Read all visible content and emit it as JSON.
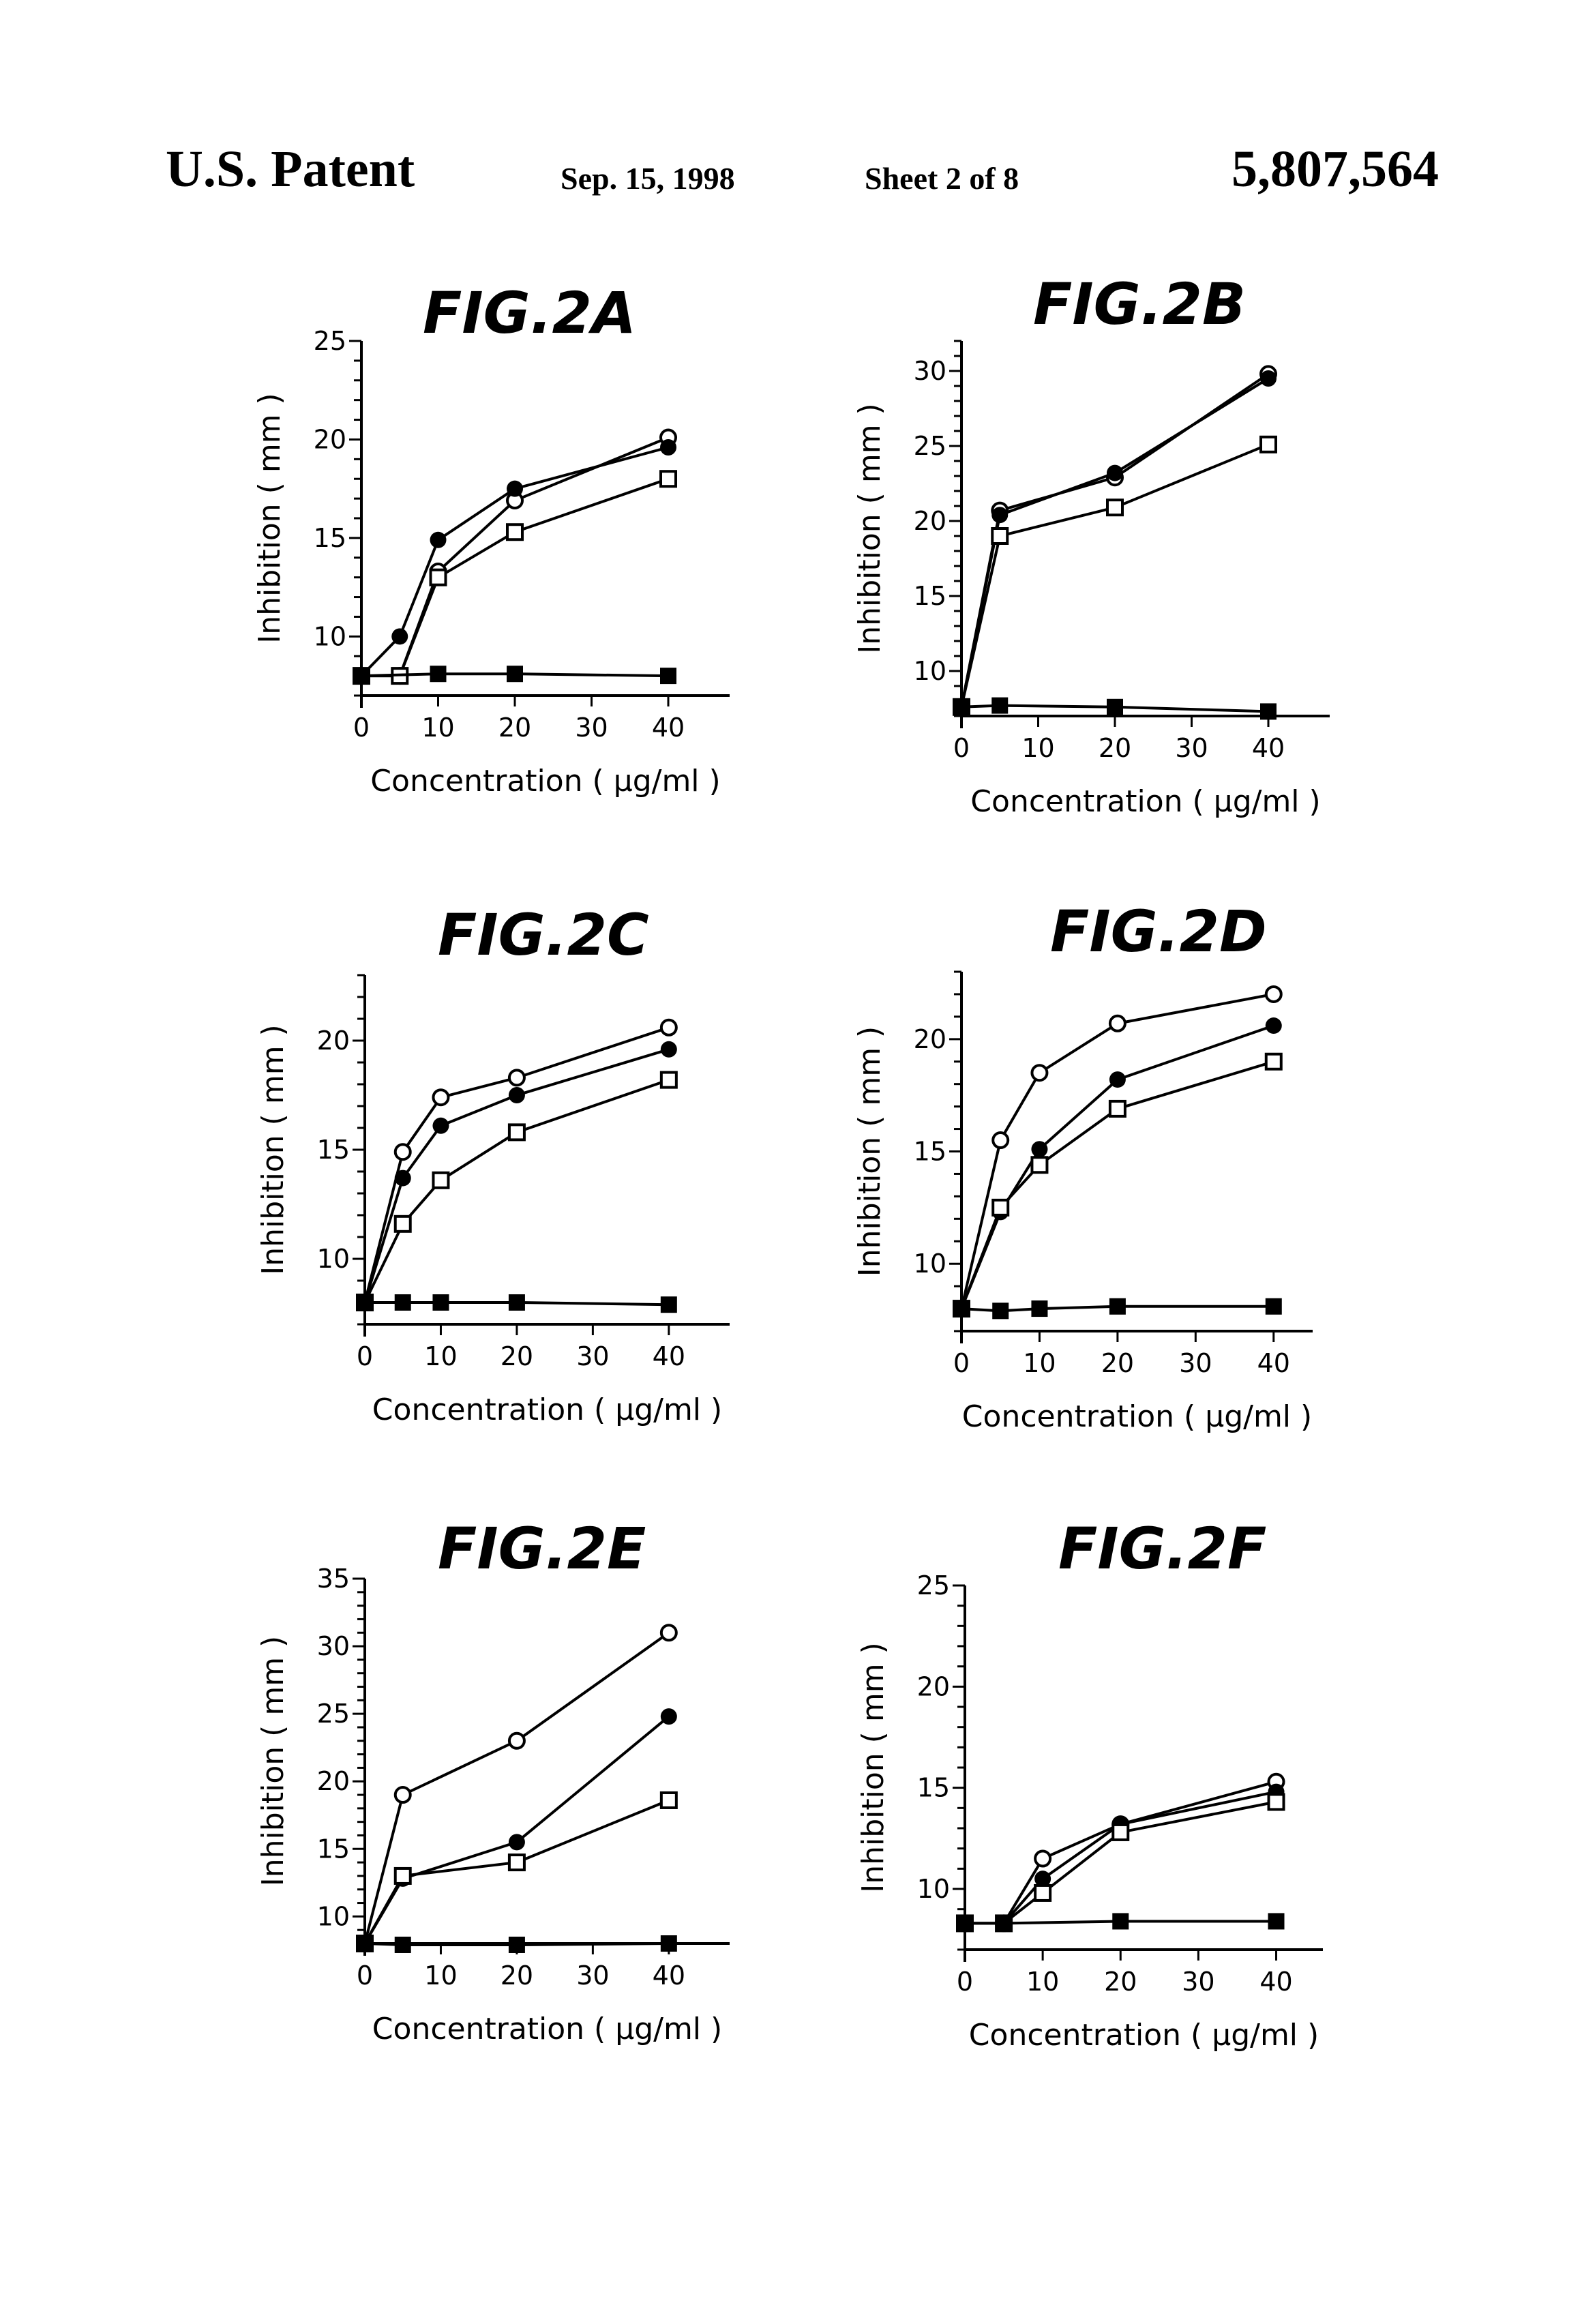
{
  "header": {
    "patent": "U.S. Patent",
    "date": "Sep. 15, 1998",
    "sheet": "Sheet 2 of 8",
    "number": "5,807,564"
  },
  "chart_data": [
    {
      "type": "line",
      "title": "FIG.2A",
      "xlabel": "Concentration ( μg/ml )",
      "ylabel": "Inhibition ( mm )",
      "xlim": [
        0,
        48
      ],
      "ylim": [
        7,
        25
      ],
      "xticks": [
        0,
        10,
        20,
        30,
        40
      ],
      "yticks": [
        10,
        15,
        20,
        25
      ],
      "ytick_labels": [
        "10",
        "15",
        "20",
        "25"
      ],
      "series": [
        {
          "marker": "open-circle",
          "x": [
            0,
            5,
            10,
            20,
            40
          ],
          "y": [
            8,
            8,
            13.3,
            16.9,
            20.1
          ]
        },
        {
          "marker": "filled-circle",
          "x": [
            0,
            5,
            10,
            20,
            40
          ],
          "y": [
            8,
            10,
            14.9,
            17.5,
            19.6
          ]
        },
        {
          "marker": "open-square",
          "x": [
            0,
            5,
            10,
            20,
            40
          ],
          "y": [
            8,
            8,
            13.0,
            15.3,
            18.0
          ]
        },
        {
          "marker": "filled-square",
          "x": [
            0,
            10,
            20,
            40
          ],
          "y": [
            8,
            8.1,
            8.1,
            8
          ]
        }
      ]
    },
    {
      "type": "line",
      "title": "FIG.2B",
      "xlabel": "Concentration ( μg/ml )",
      "ylabel": "Inhibition ( mm )",
      "xlim": [
        0,
        48
      ],
      "ylim": [
        7,
        32
      ],
      "xticks": [
        0,
        10,
        20,
        30,
        40
      ],
      "yticks": [
        10,
        15,
        20,
        25,
        30
      ],
      "ytick_labels": [
        "10",
        "15",
        "20",
        "25",
        "30"
      ],
      "series": [
        {
          "marker": "open-circle",
          "x": [
            0,
            5,
            20,
            40
          ],
          "y": [
            7.6,
            20.7,
            22.9,
            29.8
          ]
        },
        {
          "marker": "filled-circle",
          "x": [
            0,
            5,
            20,
            40
          ],
          "y": [
            7.6,
            20.4,
            23.2,
            29.5
          ]
        },
        {
          "marker": "open-square",
          "x": [
            0,
            5,
            20,
            40
          ],
          "y": [
            7.6,
            19.0,
            20.9,
            25.1
          ]
        },
        {
          "marker": "filled-square",
          "x": [
            0,
            5,
            20,
            40
          ],
          "y": [
            7.6,
            7.7,
            7.6,
            7.3
          ]
        }
      ]
    },
    {
      "type": "line",
      "title": "FIG.2C",
      "xlabel": "Concentration ( μg/ml )",
      "ylabel": "Inhibition ( mm )",
      "xlim": [
        0,
        48
      ],
      "ylim": [
        7,
        23
      ],
      "xticks": [
        0,
        10,
        20,
        30,
        40
      ],
      "yticks": [
        10,
        15,
        20
      ],
      "ytick_labels": [
        "10",
        "15",
        "20"
      ],
      "series": [
        {
          "marker": "open-circle",
          "x": [
            0,
            5,
            10,
            20,
            40
          ],
          "y": [
            8,
            14.9,
            17.4,
            18.3,
            20.6
          ]
        },
        {
          "marker": "filled-circle",
          "x": [
            0,
            5,
            10,
            20,
            40
          ],
          "y": [
            8,
            13.7,
            16.1,
            17.5,
            19.6
          ]
        },
        {
          "marker": "open-square",
          "x": [
            0,
            5,
            10,
            20,
            40
          ],
          "y": [
            8,
            11.6,
            13.6,
            15.8,
            18.2
          ]
        },
        {
          "marker": "filled-square",
          "x": [
            0,
            5,
            10,
            20,
            40
          ],
          "y": [
            8,
            8,
            8,
            8,
            7.9
          ]
        }
      ]
    },
    {
      "type": "line",
      "title": "FIG.2D",
      "xlabel": "Concentration ( μg/ml )",
      "ylabel": "Inhibition ( mm )",
      "xlim": [
        0,
        45
      ],
      "ylim": [
        7,
        23
      ],
      "xticks": [
        0,
        10,
        20,
        30,
        40
      ],
      "yticks": [
        10,
        15,
        20
      ],
      "ytick_labels": [
        "10",
        "15",
        "20"
      ],
      "series": [
        {
          "marker": "open-circle",
          "x": [
            0,
            5,
            10,
            20,
            40
          ],
          "y": [
            8,
            15.5,
            18.5,
            20.7,
            22
          ]
        },
        {
          "marker": "filled-circle",
          "x": [
            0,
            5,
            10,
            20,
            40
          ],
          "y": [
            8,
            12.3,
            15.1,
            18.2,
            20.6
          ]
        },
        {
          "marker": "open-square",
          "x": [
            0,
            5,
            10,
            20,
            40
          ],
          "y": [
            8,
            12.5,
            14.4,
            16.9,
            19
          ]
        },
        {
          "marker": "filled-square",
          "x": [
            0,
            5,
            10,
            20,
            40
          ],
          "y": [
            8,
            7.9,
            8,
            8.1,
            8.1
          ]
        }
      ]
    },
    {
      "type": "line",
      "title": "FIG.2E",
      "xlabel": "Concentration ( μg/ml )",
      "ylabel": "Inhibition ( mm )",
      "xlim": [
        0,
        48
      ],
      "ylim": [
        8,
        35
      ],
      "xticks": [
        0,
        10,
        20,
        30,
        40
      ],
      "yticks": [
        10,
        15,
        20,
        25,
        30,
        35
      ],
      "ytick_labels": [
        "10",
        "15",
        "20",
        "25",
        "30",
        "35"
      ],
      "series": [
        {
          "marker": "open-circle",
          "x": [
            0,
            5,
            20,
            40
          ],
          "y": [
            8,
            19,
            23,
            31
          ]
        },
        {
          "marker": "filled-circle",
          "x": [
            0,
            5,
            20,
            40
          ],
          "y": [
            8,
            12.8,
            15.5,
            24.8
          ]
        },
        {
          "marker": "open-square",
          "x": [
            0,
            5,
            20,
            40
          ],
          "y": [
            8,
            13,
            14,
            18.6
          ]
        },
        {
          "marker": "filled-square",
          "x": [
            0,
            5,
            20,
            40
          ],
          "y": [
            8,
            7.9,
            7.9,
            8
          ]
        }
      ]
    },
    {
      "type": "line",
      "title": "FIG.2F",
      "xlabel": "Concentration ( μg/ml )",
      "ylabel": "Inhibition ( mm )",
      "xlim": [
        0,
        46
      ],
      "ylim": [
        7,
        25
      ],
      "xticks": [
        0,
        10,
        20,
        30,
        40
      ],
      "yticks": [
        10,
        15,
        20,
        25
      ],
      "ytick_labels": [
        "10",
        "15",
        "20",
        "25"
      ],
      "series": [
        {
          "marker": "open-circle",
          "x": [
            0,
            5,
            10,
            20,
            40
          ],
          "y": [
            8.3,
            8.3,
            11.5,
            13.2,
            15.3
          ]
        },
        {
          "marker": "filled-circle",
          "x": [
            0,
            5,
            10,
            20,
            40
          ],
          "y": [
            8.3,
            8.3,
            10.5,
            13.2,
            14.8
          ]
        },
        {
          "marker": "open-square",
          "x": [
            0,
            5,
            10,
            20,
            40
          ],
          "y": [
            8.3,
            8.3,
            9.8,
            12.8,
            14.3
          ]
        },
        {
          "marker": "filled-square",
          "x": [
            0,
            5,
            20,
            40
          ],
          "y": [
            8.3,
            8.3,
            8.4,
            8.4
          ]
        }
      ]
    }
  ]
}
